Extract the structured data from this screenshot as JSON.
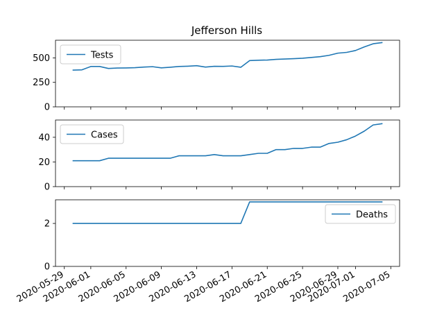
{
  "title": "Jefferson Hills",
  "chart_data": {
    "type": "line",
    "title": "Jefferson Hills",
    "x_tick_labels": [
      "2020-05-29",
      "2020-06-01",
      "2020-06-05",
      "2020-06-09",
      "2020-06-13",
      "2020-06-17",
      "2020-06-21",
      "2020-06-25",
      "2020-06-29",
      "2020-07-01",
      "2020-07-05"
    ],
    "x_range": [
      "2020-05-28",
      "2020-07-06"
    ],
    "grid": false,
    "color": "#1f77b4",
    "panels": [
      {
        "series_name": "Tests",
        "legend_position": "upper-left",
        "ylim": [
          0,
          680
        ],
        "yticks": [
          0,
          250,
          500
        ],
        "points": [
          [
            "2020-05-30",
            375
          ],
          [
            "2020-05-31",
            378
          ],
          [
            "2020-06-01",
            412
          ],
          [
            "2020-06-02",
            412
          ],
          [
            "2020-06-03",
            392
          ],
          [
            "2020-06-04",
            396
          ],
          [
            "2020-06-05",
            397
          ],
          [
            "2020-06-06",
            400
          ],
          [
            "2020-06-07",
            406
          ],
          [
            "2020-06-08",
            410
          ],
          [
            "2020-06-09",
            398
          ],
          [
            "2020-06-10",
            404
          ],
          [
            "2020-06-11",
            412
          ],
          [
            "2020-06-12",
            415
          ],
          [
            "2020-06-13",
            420
          ],
          [
            "2020-06-14",
            406
          ],
          [
            "2020-06-15",
            414
          ],
          [
            "2020-06-16",
            413
          ],
          [
            "2020-06-17",
            417
          ],
          [
            "2020-06-18",
            404
          ],
          [
            "2020-06-19",
            472
          ],
          [
            "2020-06-20",
            476
          ],
          [
            "2020-06-21",
            478
          ],
          [
            "2020-06-22",
            485
          ],
          [
            "2020-06-23",
            488
          ],
          [
            "2020-06-24",
            492
          ],
          [
            "2020-06-25",
            496
          ],
          [
            "2020-06-26",
            504
          ],
          [
            "2020-06-27",
            512
          ],
          [
            "2020-06-28",
            526
          ],
          [
            "2020-06-29",
            548
          ],
          [
            "2020-06-30",
            556
          ],
          [
            "2020-07-01",
            575
          ],
          [
            "2020-07-02",
            612
          ],
          [
            "2020-07-03",
            644
          ],
          [
            "2020-07-04",
            656
          ]
        ]
      },
      {
        "series_name": "Cases",
        "legend_position": "upper-left",
        "ylim": [
          0,
          54
        ],
        "yticks": [
          0,
          20,
          40
        ],
        "points": [
          [
            "2020-05-30",
            21
          ],
          [
            "2020-05-31",
            21
          ],
          [
            "2020-06-01",
            21
          ],
          [
            "2020-06-02",
            21
          ],
          [
            "2020-06-03",
            23
          ],
          [
            "2020-06-04",
            23
          ],
          [
            "2020-06-05",
            23
          ],
          [
            "2020-06-06",
            23
          ],
          [
            "2020-06-07",
            23
          ],
          [
            "2020-06-08",
            23
          ],
          [
            "2020-06-09",
            23
          ],
          [
            "2020-06-10",
            23
          ],
          [
            "2020-06-11",
            25
          ],
          [
            "2020-06-12",
            25
          ],
          [
            "2020-06-13",
            25
          ],
          [
            "2020-06-14",
            25
          ],
          [
            "2020-06-15",
            26
          ],
          [
            "2020-06-16",
            25
          ],
          [
            "2020-06-17",
            25
          ],
          [
            "2020-06-18",
            25
          ],
          [
            "2020-06-19",
            26
          ],
          [
            "2020-06-20",
            27
          ],
          [
            "2020-06-21",
            27
          ],
          [
            "2020-06-22",
            30
          ],
          [
            "2020-06-23",
            30
          ],
          [
            "2020-06-24",
            31
          ],
          [
            "2020-06-25",
            31
          ],
          [
            "2020-06-26",
            32
          ],
          [
            "2020-06-27",
            32
          ],
          [
            "2020-06-28",
            35
          ],
          [
            "2020-06-29",
            36
          ],
          [
            "2020-06-30",
            38
          ],
          [
            "2020-07-01",
            41
          ],
          [
            "2020-07-02",
            45
          ],
          [
            "2020-07-03",
            50
          ],
          [
            "2020-07-04",
            51
          ]
        ]
      },
      {
        "series_name": "Deaths",
        "legend_position": "upper-right",
        "ylim": [
          0,
          3.1
        ],
        "yticks": [
          0,
          2
        ],
        "points": [
          [
            "2020-05-30",
            2
          ],
          [
            "2020-05-31",
            2
          ],
          [
            "2020-06-01",
            2
          ],
          [
            "2020-06-02",
            2
          ],
          [
            "2020-06-03",
            2
          ],
          [
            "2020-06-04",
            2
          ],
          [
            "2020-06-05",
            2
          ],
          [
            "2020-06-06",
            2
          ],
          [
            "2020-06-07",
            2
          ],
          [
            "2020-06-08",
            2
          ],
          [
            "2020-06-09",
            2
          ],
          [
            "2020-06-10",
            2
          ],
          [
            "2020-06-11",
            2
          ],
          [
            "2020-06-12",
            2
          ],
          [
            "2020-06-13",
            2
          ],
          [
            "2020-06-14",
            2
          ],
          [
            "2020-06-15",
            2
          ],
          [
            "2020-06-16",
            2
          ],
          [
            "2020-06-17",
            2
          ],
          [
            "2020-06-18",
            2
          ],
          [
            "2020-06-19",
            3
          ],
          [
            "2020-06-20",
            3
          ],
          [
            "2020-06-21",
            3
          ],
          [
            "2020-06-22",
            3
          ],
          [
            "2020-06-23",
            3
          ],
          [
            "2020-06-24",
            3
          ],
          [
            "2020-06-25",
            3
          ],
          [
            "2020-06-26",
            3
          ],
          [
            "2020-06-27",
            3
          ],
          [
            "2020-06-28",
            3
          ],
          [
            "2020-06-29",
            3
          ],
          [
            "2020-06-30",
            3
          ],
          [
            "2020-07-01",
            3
          ],
          [
            "2020-07-02",
            3
          ],
          [
            "2020-07-03",
            3
          ],
          [
            "2020-07-04",
            3
          ]
        ]
      }
    ]
  }
}
